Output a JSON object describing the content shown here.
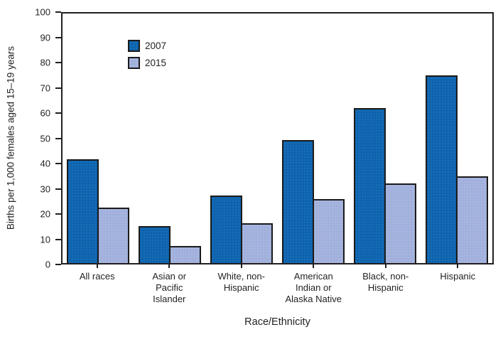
{
  "figure": {
    "background": "#ffffff",
    "axis_color": "#231f20",
    "text_color": "#231f20",
    "bar_outline_color": "#1c1b1a"
  },
  "chart_data": {
    "type": "bar",
    "xlabel": "Race/Ethnicity",
    "ylabel": "Births per 1,000 females aged 15–19 years",
    "ylim": [
      0,
      100
    ],
    "ytick_interval": 10,
    "yticks": [
      0,
      10,
      20,
      30,
      40,
      50,
      60,
      70,
      80,
      90,
      100
    ],
    "grid": false,
    "legend_position": "upper-left-inside",
    "categories": [
      "All races",
      "Asian or Pacific Islander",
      "White, non-Hispanic",
      "American Indian or Alaska Native",
      "Black, non-Hispanic",
      "Hispanic"
    ],
    "category_label_lines": [
      [
        "All races"
      ],
      [
        "Asian or",
        "Pacific",
        "Islander"
      ],
      [
        "White, non-",
        "Hispanic"
      ],
      [
        "American",
        "Indian or",
        "Alaska Native"
      ],
      [
        "Black, non-",
        "Hispanic"
      ],
      [
        "Hispanic"
      ]
    ],
    "series": [
      {
        "name": "2007",
        "color": "#0e65b0",
        "values": [
          41.5,
          14.8,
          27.2,
          49.3,
          62.0,
          75.3
        ]
      },
      {
        "name": "2015",
        "color": "#a3b2de",
        "values": [
          22.3,
          6.9,
          16.0,
          25.7,
          31.8,
          34.9
        ]
      }
    ]
  }
}
